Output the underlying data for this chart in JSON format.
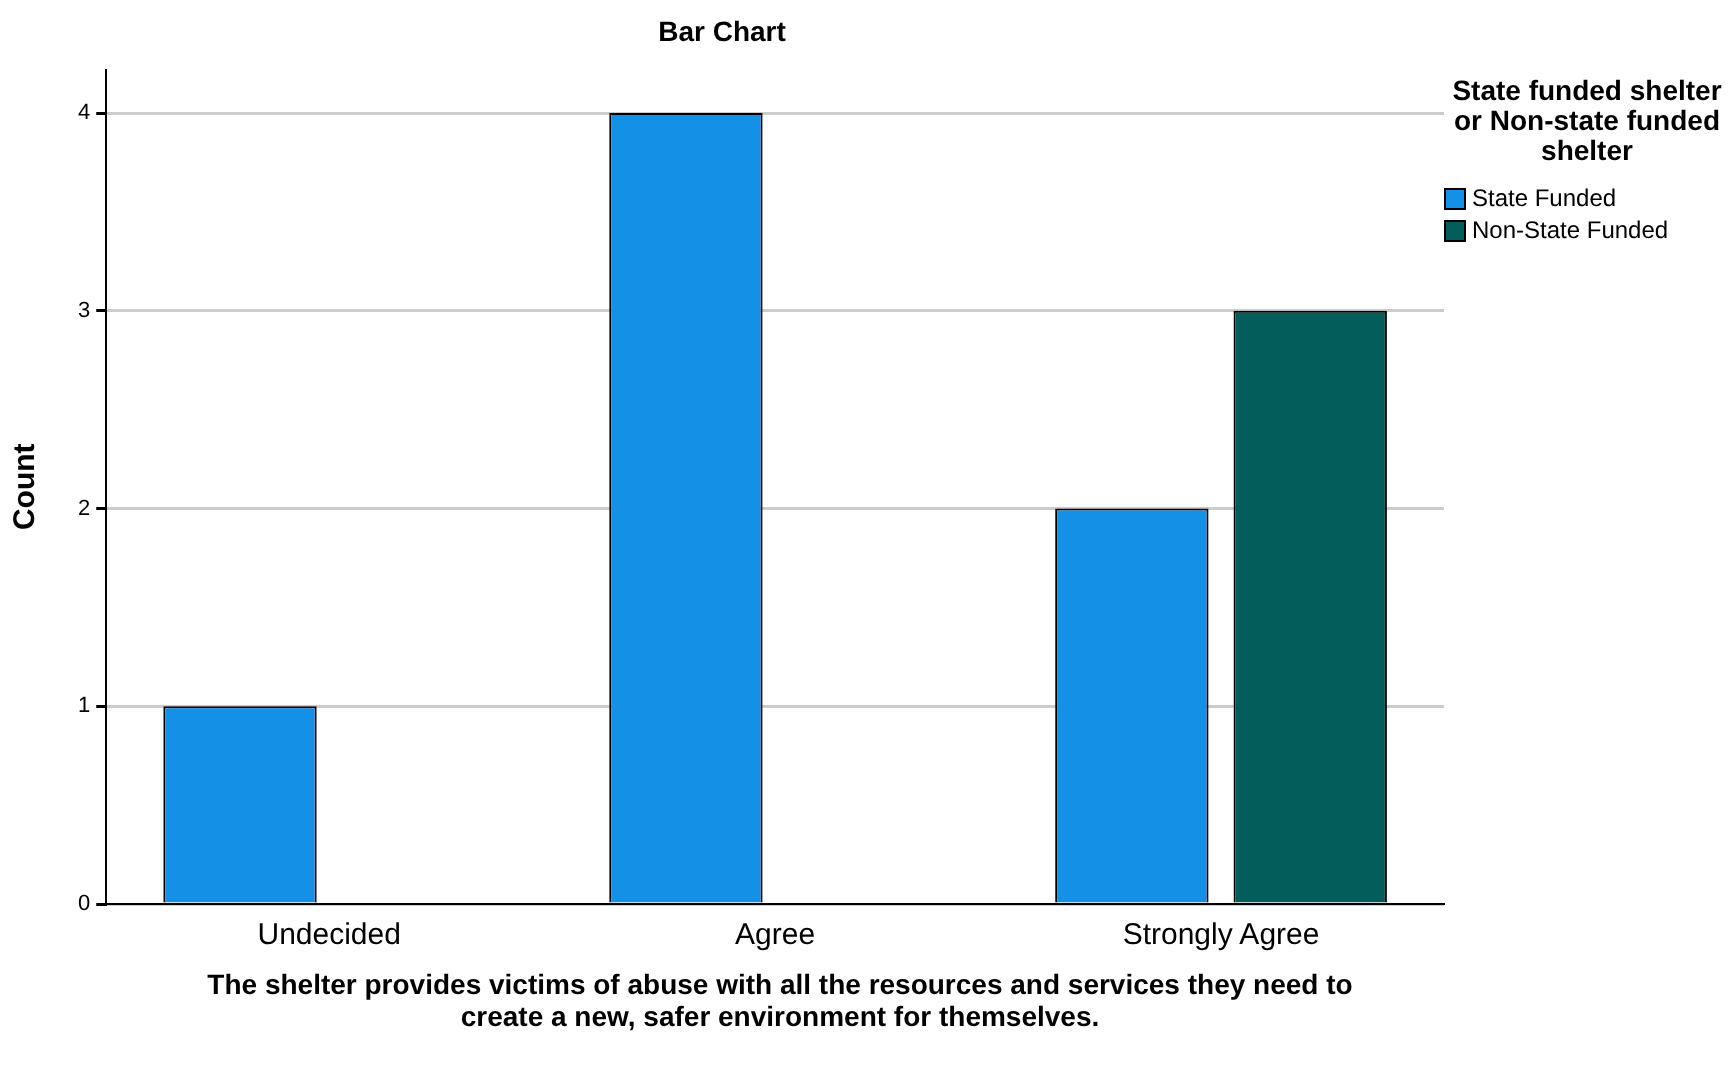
{
  "chart_data": {
    "type": "bar",
    "title": "Bar Chart",
    "xlabel": "The shelter provides victims of abuse with all the resources and services they need to create a new, safer environment for themselves.",
    "ylabel": "Count",
    "legend_title": "State funded shelter or Non-state funded shelter",
    "categories": [
      "Undecided",
      "Agree",
      "Strongly Agree"
    ],
    "series": [
      {
        "name": "State Funded",
        "color": "#1491e6",
        "values": [
          1,
          4,
          2
        ]
      },
      {
        "name": "Non-State Funded",
        "color": "#035e5b",
        "values": [
          null,
          null,
          3
        ]
      }
    ],
    "ylim": [
      0,
      4.22
    ],
    "yticks": [
      0,
      1,
      2,
      3,
      4
    ],
    "grid": "y",
    "legend": "top right"
  }
}
